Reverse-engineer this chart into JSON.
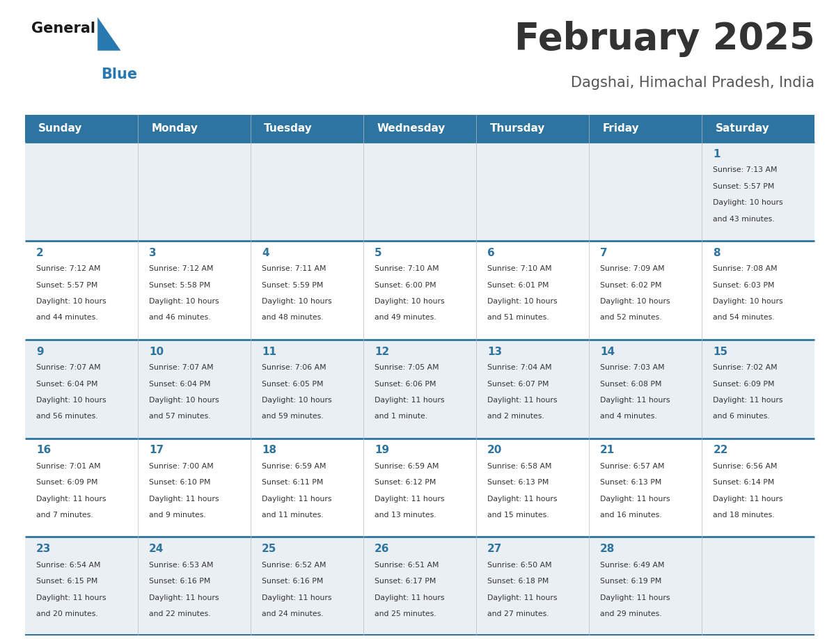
{
  "title": "February 2025",
  "subtitle": "Dagshai, Himachal Pradesh, India",
  "header_bg": "#2E74A0",
  "header_text_color": "#FFFFFF",
  "weekdays": [
    "Sunday",
    "Monday",
    "Tuesday",
    "Wednesday",
    "Thursday",
    "Friday",
    "Saturday"
  ],
  "day_number_color": "#2E74A0",
  "cell_text_color": "#333333",
  "grid_line_color": "#2E74A0",
  "row_bg_odd": "#EAEFF4",
  "row_bg_even": "#FFFFFF",
  "title_color": "#333333",
  "subtitle_color": "#555555",
  "calendar": [
    [
      null,
      null,
      null,
      null,
      null,
      null,
      1
    ],
    [
      2,
      3,
      4,
      5,
      6,
      7,
      8
    ],
    [
      9,
      10,
      11,
      12,
      13,
      14,
      15
    ],
    [
      16,
      17,
      18,
      19,
      20,
      21,
      22
    ],
    [
      23,
      24,
      25,
      26,
      27,
      28,
      null
    ]
  ],
  "day_info": {
    "1": {
      "sunrise": "7:13 AM",
      "sunset": "5:57 PM",
      "daylight_h": "10 hours",
      "daylight_m": "and 43 minutes."
    },
    "2": {
      "sunrise": "7:12 AM",
      "sunset": "5:57 PM",
      "daylight_h": "10 hours",
      "daylight_m": "and 44 minutes."
    },
    "3": {
      "sunrise": "7:12 AM",
      "sunset": "5:58 PM",
      "daylight_h": "10 hours",
      "daylight_m": "and 46 minutes."
    },
    "4": {
      "sunrise": "7:11 AM",
      "sunset": "5:59 PM",
      "daylight_h": "10 hours",
      "daylight_m": "and 48 minutes."
    },
    "5": {
      "sunrise": "7:10 AM",
      "sunset": "6:00 PM",
      "daylight_h": "10 hours",
      "daylight_m": "and 49 minutes."
    },
    "6": {
      "sunrise": "7:10 AM",
      "sunset": "6:01 PM",
      "daylight_h": "10 hours",
      "daylight_m": "and 51 minutes."
    },
    "7": {
      "sunrise": "7:09 AM",
      "sunset": "6:02 PM",
      "daylight_h": "10 hours",
      "daylight_m": "and 52 minutes."
    },
    "8": {
      "sunrise": "7:08 AM",
      "sunset": "6:03 PM",
      "daylight_h": "10 hours",
      "daylight_m": "and 54 minutes."
    },
    "9": {
      "sunrise": "7:07 AM",
      "sunset": "6:04 PM",
      "daylight_h": "10 hours",
      "daylight_m": "and 56 minutes."
    },
    "10": {
      "sunrise": "7:07 AM",
      "sunset": "6:04 PM",
      "daylight_h": "10 hours",
      "daylight_m": "and 57 minutes."
    },
    "11": {
      "sunrise": "7:06 AM",
      "sunset": "6:05 PM",
      "daylight_h": "10 hours",
      "daylight_m": "and 59 minutes."
    },
    "12": {
      "sunrise": "7:05 AM",
      "sunset": "6:06 PM",
      "daylight_h": "11 hours",
      "daylight_m": "and 1 minute."
    },
    "13": {
      "sunrise": "7:04 AM",
      "sunset": "6:07 PM",
      "daylight_h": "11 hours",
      "daylight_m": "and 2 minutes."
    },
    "14": {
      "sunrise": "7:03 AM",
      "sunset": "6:08 PM",
      "daylight_h": "11 hours",
      "daylight_m": "and 4 minutes."
    },
    "15": {
      "sunrise": "7:02 AM",
      "sunset": "6:09 PM",
      "daylight_h": "11 hours",
      "daylight_m": "and 6 minutes."
    },
    "16": {
      "sunrise": "7:01 AM",
      "sunset": "6:09 PM",
      "daylight_h": "11 hours",
      "daylight_m": "and 7 minutes."
    },
    "17": {
      "sunrise": "7:00 AM",
      "sunset": "6:10 PM",
      "daylight_h": "11 hours",
      "daylight_m": "and 9 minutes."
    },
    "18": {
      "sunrise": "6:59 AM",
      "sunset": "6:11 PM",
      "daylight_h": "11 hours",
      "daylight_m": "and 11 minutes."
    },
    "19": {
      "sunrise": "6:59 AM",
      "sunset": "6:12 PM",
      "daylight_h": "11 hours",
      "daylight_m": "and 13 minutes."
    },
    "20": {
      "sunrise": "6:58 AM",
      "sunset": "6:13 PM",
      "daylight_h": "11 hours",
      "daylight_m": "and 15 minutes."
    },
    "21": {
      "sunrise": "6:57 AM",
      "sunset": "6:13 PM",
      "daylight_h": "11 hours",
      "daylight_m": "and 16 minutes."
    },
    "22": {
      "sunrise": "6:56 AM",
      "sunset": "6:14 PM",
      "daylight_h": "11 hours",
      "daylight_m": "and 18 minutes."
    },
    "23": {
      "sunrise": "6:54 AM",
      "sunset": "6:15 PM",
      "daylight_h": "11 hours",
      "daylight_m": "and 20 minutes."
    },
    "24": {
      "sunrise": "6:53 AM",
      "sunset": "6:16 PM",
      "daylight_h": "11 hours",
      "daylight_m": "and 22 minutes."
    },
    "25": {
      "sunrise": "6:52 AM",
      "sunset": "6:16 PM",
      "daylight_h": "11 hours",
      "daylight_m": "and 24 minutes."
    },
    "26": {
      "sunrise": "6:51 AM",
      "sunset": "6:17 PM",
      "daylight_h": "11 hours",
      "daylight_m": "and 25 minutes."
    },
    "27": {
      "sunrise": "6:50 AM",
      "sunset": "6:18 PM",
      "daylight_h": "11 hours",
      "daylight_m": "and 27 minutes."
    },
    "28": {
      "sunrise": "6:49 AM",
      "sunset": "6:19 PM",
      "daylight_h": "11 hours",
      "daylight_m": "and 29 minutes."
    }
  }
}
